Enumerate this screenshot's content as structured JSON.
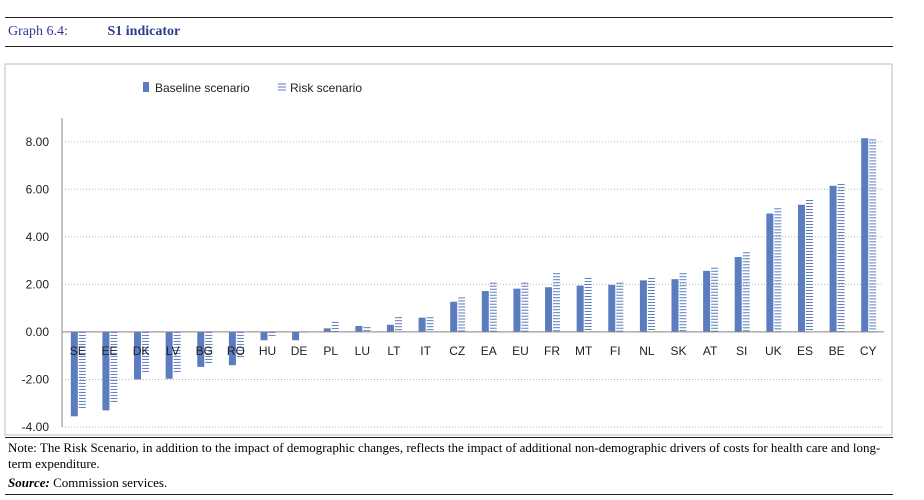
{
  "header": {
    "graph_number": "Graph 6.4:",
    "title": "S1 indicator"
  },
  "footer": {
    "note": "Note: The Risk Scenario, in addition to the impact of demographic changes, reflects the impact of additional non-demographic drivers of costs for health care and long-term expenditure.",
    "source_label": "Source:",
    "source_text": "Commission services."
  },
  "chart_data": {
    "type": "bar",
    "categories": [
      "SE",
      "EE",
      "DK",
      "LV",
      "BG",
      "RO",
      "HU",
      "DE",
      "PL",
      "LU",
      "LT",
      "IT",
      "CZ",
      "EA",
      "EU",
      "FR",
      "MT",
      "FI",
      "NL",
      "SK",
      "AT",
      "SI",
      "UK",
      "ES",
      "BE",
      "CY"
    ],
    "series": [
      {
        "name": "Baseline scenario",
        "values": [
          -3.55,
          -3.3,
          -2.0,
          -1.97,
          -1.47,
          -1.4,
          -0.35,
          -0.35,
          0.15,
          0.25,
          0.3,
          0.6,
          1.27,
          1.72,
          1.82,
          1.88,
          1.95,
          1.98,
          2.17,
          2.22,
          2.57,
          3.15,
          4.98,
          5.35,
          6.15,
          8.15
        ]
      },
      {
        "name": "Risk scenario",
        "values": [
          -3.3,
          -3.05,
          -1.7,
          -1.7,
          -1.3,
          -1.1,
          -0.15,
          0.0,
          0.42,
          0.2,
          0.62,
          0.62,
          1.45,
          2.07,
          2.07,
          2.47,
          2.27,
          2.07,
          2.27,
          2.47,
          2.7,
          3.35,
          5.2,
          5.55,
          6.22,
          8.1
        ]
      }
    ],
    "colors": {
      "baseline": "#5b7cbf",
      "risk": "#5b7cbf"
    },
    "yticks": [
      "8.00",
      "6.00",
      "4.00",
      "2.00",
      "0.00",
      "-2.00",
      "-4.00"
    ],
    "ylim": [
      -4.0,
      9.0
    ],
    "grid": true,
    "legend_position": "top-left",
    "title": "",
    "xlabel": "",
    "ylabel": ""
  }
}
